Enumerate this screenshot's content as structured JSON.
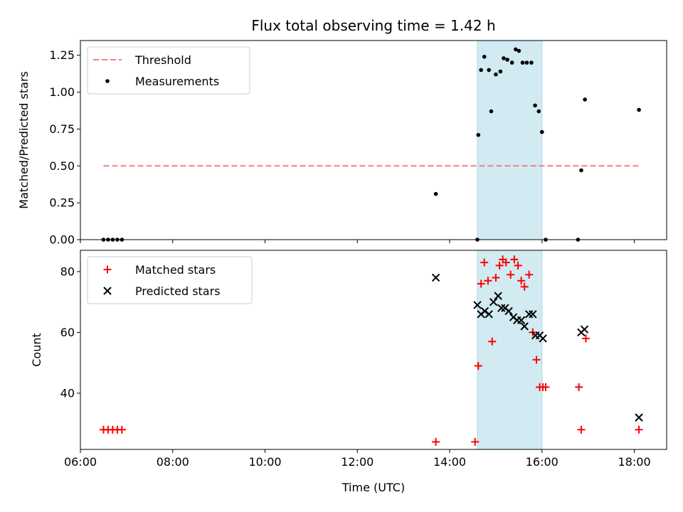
{
  "chart_data": [
    {
      "type": "scatter",
      "title": "Flux total observing time = 1.42 h",
      "xlabel": "",
      "ylabel": "Matched/Predicted stars",
      "xlim": [
        6.0,
        18.7
      ],
      "ylim": [
        0.0,
        1.35
      ],
      "yticks": [
        0.0,
        0.25,
        0.5,
        0.75,
        1.0,
        1.25
      ],
      "ytick_labels": [
        "0.00",
        "0.25",
        "0.50",
        "0.75",
        "1.00",
        "1.25"
      ],
      "xticks": [
        6,
        8,
        10,
        12,
        14,
        16,
        18
      ],
      "xtick_labels_shown": false,
      "shaded_span": {
        "x0": 14.6,
        "x1": 16.0,
        "color": "#add8e6"
      },
      "legend": {
        "location": "upper-left",
        "entries": [
          "Threshold",
          "Measurements"
        ]
      },
      "series": [
        {
          "name": "Threshold",
          "kind": "dashed-line",
          "color": "#f08080",
          "x": [
            6.5,
            18.1
          ],
          "y": [
            0.5,
            0.5
          ]
        },
        {
          "name": "Measurements",
          "kind": "dots",
          "color": "#000000",
          "x": [
            6.5,
            6.6,
            6.7,
            6.8,
            6.9,
            13.7,
            14.6,
            14.62,
            14.68,
            14.75,
            14.85,
            14.9,
            15.0,
            15.1,
            15.17,
            15.25,
            15.35,
            15.43,
            15.5,
            15.58,
            15.67,
            15.77,
            15.85,
            15.93,
            16.0,
            16.08,
            16.78,
            16.85,
            16.93,
            18.1
          ],
          "y": [
            0.0,
            0.0,
            0.0,
            0.0,
            0.0,
            0.31,
            0.0,
            0.71,
            1.15,
            1.24,
            1.15,
            0.87,
            1.12,
            1.14,
            1.23,
            1.22,
            1.2,
            1.29,
            1.28,
            1.2,
            1.2,
            1.2,
            0.91,
            0.87,
            0.73,
            0.0,
            0.0,
            0.47,
            0.95,
            0.88
          ]
        }
      ]
    },
    {
      "type": "scatter",
      "title": "",
      "xlabel": "Time (UTC)",
      "ylabel": "Count",
      "xlim": [
        6.0,
        18.7
      ],
      "ylim": [
        21.5,
        87.0
      ],
      "yticks": [
        40,
        60,
        80
      ],
      "ytick_labels": [
        "40",
        "60",
        "80"
      ],
      "xticks": [
        6,
        8,
        10,
        12,
        14,
        16,
        18
      ],
      "xtick_labels": [
        "06:00",
        "08:00",
        "10:00",
        "12:00",
        "14:00",
        "16:00",
        "18:00"
      ],
      "shaded_span": {
        "x0": 14.6,
        "x1": 16.0,
        "color": "#add8e6"
      },
      "legend": {
        "location": "upper-left",
        "entries": [
          "Matched stars",
          "Predicted stars"
        ]
      },
      "series": [
        {
          "name": "Matched stars",
          "marker": "plus",
          "color": "#ff0000",
          "x": [
            6.5,
            6.6,
            6.7,
            6.8,
            6.9,
            13.7,
            14.55,
            14.62,
            14.68,
            14.75,
            14.83,
            14.92,
            15.0,
            15.08,
            15.15,
            15.22,
            15.32,
            15.4,
            15.48,
            15.55,
            15.62,
            15.72,
            15.8,
            15.88,
            15.95,
            16.02,
            16.08,
            16.8,
            16.85,
            16.95,
            18.1
          ],
          "y": [
            28,
            28,
            28,
            28,
            28,
            24,
            24,
            49,
            76,
            83,
            77,
            57,
            78,
            82,
            84,
            83,
            79,
            84,
            82,
            77,
            75,
            79,
            60,
            51,
            42,
            42,
            42,
            42,
            28,
            58,
            28
          ]
        },
        {
          "name": "Predicted stars",
          "marker": "x",
          "color": "#000000",
          "x": [
            13.7,
            14.6,
            14.68,
            14.76,
            14.85,
            14.95,
            15.05,
            15.12,
            15.2,
            15.28,
            15.38,
            15.46,
            15.55,
            15.62,
            15.72,
            15.8,
            15.86,
            15.95,
            16.02,
            16.85,
            16.92,
            18.1
          ],
          "y": [
            78,
            69,
            66,
            67,
            66,
            70,
            72,
            68,
            68,
            67,
            65,
            64,
            64,
            62,
            66,
            66,
            59,
            59,
            58,
            60,
            61,
            32
          ]
        }
      ]
    }
  ]
}
